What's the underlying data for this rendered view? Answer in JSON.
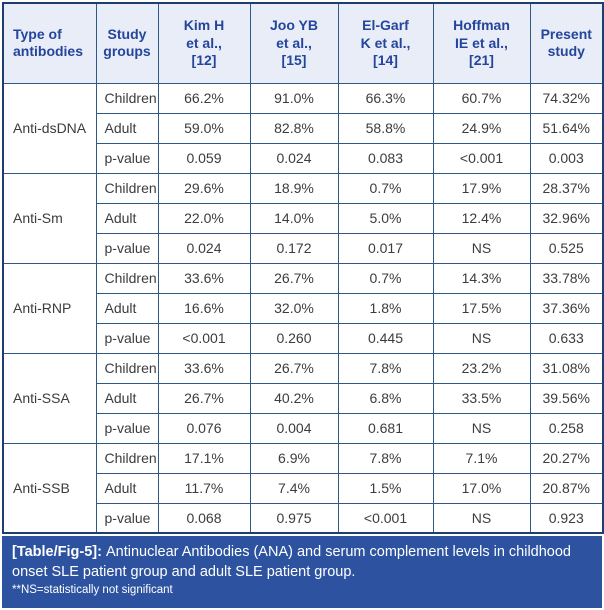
{
  "colors": {
    "header_bg": "#e9edf7",
    "header_text": "#24459c",
    "grid_border": "#2e5a85",
    "outer_border": "#1e3f6d",
    "footer_bg": "#2d53a0",
    "footer_text": "#ffffff",
    "body_text": "#3c3c3c"
  },
  "table": {
    "columns": [
      "Type of\nantibodies",
      "Study\ngroups",
      "Kim H\net al.,\n[12]",
      "Joo YB\net al.,\n[15]",
      "El-Garf\nK et al.,\n[14]",
      "Hoffman\nIE et al.,\n[21]",
      "Present\nstudy"
    ],
    "row_labels": [
      "Children",
      "Adult",
      "p-value"
    ],
    "groups": [
      {
        "antibody": "Anti-dsDNA",
        "rows": [
          [
            "66.2%",
            "91.0%",
            "66.3%",
            "60.7%",
            "74.32%"
          ],
          [
            "59.0%",
            "82.8%",
            "58.8%",
            "24.9%",
            "51.64%"
          ],
          [
            "0.059",
            "0.024",
            "0.083",
            "<0.001",
            "0.003"
          ]
        ]
      },
      {
        "antibody": "Anti-Sm",
        "rows": [
          [
            "29.6%",
            "18.9%",
            "0.7%",
            "17.9%",
            "28.37%"
          ],
          [
            "22.0%",
            "14.0%",
            "5.0%",
            "12.4%",
            "32.96%"
          ],
          [
            "0.024",
            "0.172",
            "0.017",
            "NS",
            "0.525"
          ]
        ]
      },
      {
        "antibody": "Anti-RNP",
        "rows": [
          [
            "33.6%",
            "26.7%",
            "0.7%",
            "14.3%",
            "33.78%"
          ],
          [
            "16.6%",
            "32.0%",
            "1.8%",
            "17.5%",
            "37.36%"
          ],
          [
            "<0.001",
            "0.260",
            "0.445",
            "NS",
            "0.633"
          ]
        ]
      },
      {
        "antibody": "Anti-SSA",
        "rows": [
          [
            "33.6%",
            "26.7%",
            "7.8%",
            "23.2%",
            "31.08%"
          ],
          [
            "26.7%",
            "40.2%",
            "6.8%",
            "33.5%",
            "39.56%"
          ],
          [
            "0.076",
            "0.004",
            "0.681",
            "NS",
            "0.258"
          ]
        ]
      },
      {
        "antibody": "Anti-SSB",
        "rows": [
          [
            "17.1%",
            "6.9%",
            "7.8%",
            "7.1%",
            "20.27%"
          ],
          [
            "11.7%",
            "7.4%",
            "1.5%",
            "17.0%",
            "20.87%"
          ],
          [
            "0.068",
            "0.975",
            "<0.001",
            "NS",
            "0.923"
          ]
        ]
      }
    ]
  },
  "footer": {
    "label": "[Table/Fig-5]:",
    "caption": "Antinuclear Antibodies (ANA) and serum complement levels in childhood onset SLE patient group and adult SLE patient group.",
    "footnote": "**NS=statistically not significant"
  }
}
